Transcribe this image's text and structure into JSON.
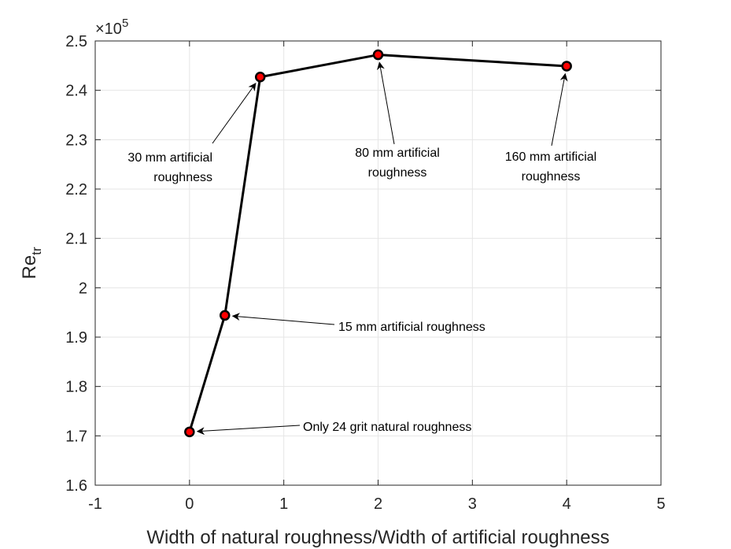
{
  "chart_data": {
    "type": "line",
    "xlabel": "Width of natural roughness/Width of artificial roughness",
    "ylabel": {
      "main": "Re",
      "sub": "tr"
    },
    "exponent": {
      "base": "×10",
      "power": "5"
    },
    "xlim": [
      -1,
      5
    ],
    "ylim": [
      1.6,
      2.5
    ],
    "xticks": [
      -1,
      0,
      1,
      2,
      3,
      4,
      5
    ],
    "yticks": [
      1.6,
      1.7,
      1.8,
      1.9,
      2.0,
      2.1,
      2.2,
      2.3,
      2.4,
      2.5
    ],
    "xtick_labels": [
      "-1",
      "0",
      "1",
      "2",
      "3",
      "4",
      "5"
    ],
    "ytick_labels": [
      "1.6",
      "1.7",
      "1.8",
      "1.9",
      "2",
      "2.1",
      "2.2",
      "2.3",
      "2.4",
      "2.5"
    ],
    "grid": true,
    "series": [
      {
        "x": [
          0,
          0.375,
          0.75,
          2,
          4
        ],
        "y": [
          1.708,
          1.944,
          2.427,
          2.472,
          2.449
        ],
        "line_color": "#000000",
        "marker_fill": "#ff0000",
        "marker_edge": "#000000"
      }
    ],
    "annotations": [
      {
        "lines": [
          "Only 24 grit natural roughness"
        ],
        "point": [
          0,
          1.708
        ]
      },
      {
        "lines": [
          "15 mm artificial roughness"
        ],
        "point": [
          0.375,
          1.944
        ]
      },
      {
        "lines": [
          "30 mm artificial",
          "roughness"
        ],
        "point": [
          0.75,
          2.427
        ]
      },
      {
        "lines": [
          "80 mm artificial",
          "roughness"
        ],
        "point": [
          2,
          2.472
        ]
      },
      {
        "lines": [
          "160 mm artificial",
          "roughness"
        ],
        "point": [
          4,
          2.449
        ]
      }
    ]
  }
}
